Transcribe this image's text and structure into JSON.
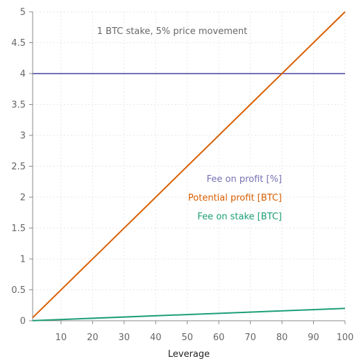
{
  "chart_data": {
    "type": "line",
    "title": "",
    "xlabel": "Leverage",
    "ylabel": "",
    "xlim": [
      1,
      100
    ],
    "ylim": [
      0,
      5
    ],
    "x_ticks": [
      "10",
      "20",
      "30",
      "40",
      "50",
      "60",
      "70",
      "80",
      "90",
      "100"
    ],
    "y_ticks": [
      "0",
      "0.5",
      "1",
      "1.5",
      "2",
      "2.5",
      "3",
      "3.5",
      "4",
      "4.5",
      "5"
    ],
    "grid": true,
    "annotation": "1 BTC stake, 5% price movement",
    "legend_placement": "center-right",
    "series": [
      {
        "name": "Fee on profit [%]",
        "color": "#7570b3",
        "x": [
          1,
          100
        ],
        "y": [
          4,
          4
        ]
      },
      {
        "name": "Potential profit [BTC]",
        "color": "#d95f02",
        "x": [
          1,
          100
        ],
        "y": [
          0.05,
          5
        ]
      },
      {
        "name": "Fee on stake [BTC]",
        "color": "#1b9e77",
        "x": [
          1,
          100
        ],
        "y": [
          0.002,
          0.2
        ]
      }
    ]
  }
}
